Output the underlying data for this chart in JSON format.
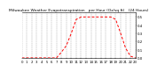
{
  "title": "Milwaukee Weather Evapotranspiration   per Hour (Oz/sq ft)   (24 Hours)",
  "hours": [
    0,
    1,
    2,
    3,
    4,
    5,
    6,
    7,
    8,
    9,
    10,
    11,
    12,
    13,
    14,
    15,
    16,
    17,
    18,
    19,
    20,
    21,
    22,
    23
  ],
  "values": [
    0.0,
    0.0,
    0.0,
    0.0,
    0.0,
    0.0,
    0.0,
    0.0,
    0.07,
    0.15,
    0.3,
    0.47,
    0.5,
    0.5,
    0.5,
    0.5,
    0.5,
    0.5,
    0.5,
    0.47,
    0.3,
    0.12,
    0.02,
    0.0
  ],
  "line_color": "#ff0000",
  "line_style": "--",
  "line_width": 0.7,
  "bg_color": "#ffffff",
  "plot_bg_color": "#ffffff",
  "ylim": [
    0,
    0.56
  ],
  "xlim": [
    0,
    23
  ],
  "grid_color": "#999999",
  "tick_color": "#000000",
  "title_fontsize": 3.2,
  "tick_fontsize": 2.8,
  "ytick_step": 0.1,
  "xtick_every": 1
}
